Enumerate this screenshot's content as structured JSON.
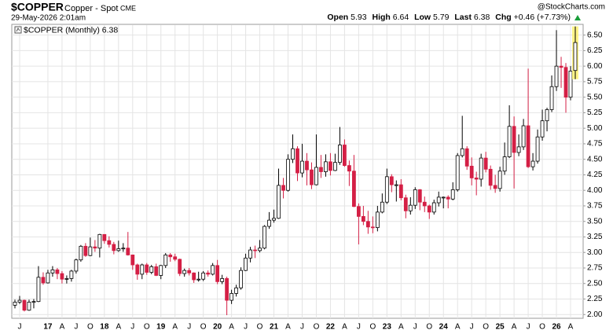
{
  "chart_data": {
    "type": "candlestick",
    "symbol": "$COPPER",
    "name": "Copper - Spot",
    "exchange": "CME",
    "date": "29-May-2026 2:01am",
    "source": "@StockCharts.com",
    "quote_labels": [
      "Open",
      "High",
      "Low",
      "Last",
      "Chg"
    ],
    "change": "+0.46 (+7.73%)",
    "legend": "$COPPER (Monthly)",
    "up_color": "#ffffff",
    "down_color": "#d41f45",
    "grid": true,
    "categories": [
      null,
      "J",
      null,
      null,
      null,
      null,
      null,
      "17",
      null,
      null,
      "A",
      null,
      null,
      "J",
      null,
      null,
      "O",
      null,
      null,
      "18",
      null,
      null,
      "A",
      null,
      null,
      "J",
      null,
      null,
      "O",
      null,
      null,
      "19",
      null,
      null,
      "A",
      null,
      null,
      "J",
      null,
      null,
      "O",
      null,
      null,
      "20",
      null,
      null,
      "A",
      null,
      null,
      "J",
      null,
      null,
      "O",
      null,
      null,
      "21",
      null,
      null,
      "A",
      null,
      null,
      "J",
      null,
      null,
      "O",
      null,
      null,
      "22",
      null,
      null,
      "A",
      null,
      null,
      "J",
      null,
      null,
      "O",
      null,
      null,
      "23",
      null,
      null,
      "A",
      null,
      null,
      "J",
      null,
      null,
      "O",
      null,
      null,
      "24",
      null,
      null,
      "A",
      null,
      null,
      "J",
      null,
      null,
      "O",
      null,
      null,
      "25",
      null,
      null,
      "A",
      null,
      null,
      "J",
      null,
      null,
      "O",
      null,
      null,
      "26",
      null,
      null,
      "A",
      null
    ],
    "open": [
      2.15,
      2.2,
      2.23,
      2.07,
      2.2,
      2.21,
      2.6,
      2.51,
      2.67,
      2.72,
      2.66,
      2.57,
      2.58,
      2.7,
      2.88,
      3.1,
      2.95,
      3.09,
      3.07,
      3.29,
      3.19,
      3.13,
      3.03,
      3.06,
      3.07,
      2.96,
      2.8,
      2.65,
      2.8,
      2.68,
      2.77,
      2.63,
      2.79,
      2.96,
      2.93,
      2.89,
      2.66,
      2.71,
      2.67,
      2.56,
      2.57,
      2.67,
      2.65,
      2.79,
      2.53,
      2.58,
      2.23,
      2.34,
      2.43,
      2.71,
      2.91,
      3.04,
      3.03,
      3.07,
      3.42,
      3.52,
      3.55,
      4.08,
      4.0,
      4.5,
      4.67,
      4.28,
      4.47,
      4.33,
      4.09,
      4.37,
      4.3,
      4.46,
      4.32,
      4.45,
      4.73,
      4.4,
      4.31,
      3.74,
      3.58,
      3.5,
      3.41,
      3.4,
      3.65,
      3.81,
      4.22,
      4.09,
      4.09,
      3.88,
      3.67,
      3.76,
      4.01,
      3.81,
      3.75,
      3.65,
      3.8,
      3.89,
      3.89,
      3.86,
      4.01,
      4.56,
      4.67,
      4.39,
      4.2,
      4.18,
      4.52,
      4.34,
      4.08,
      4.03,
      4.31,
      4.54,
      5.03,
      4.61,
      4.7,
      5.04,
      4.38,
      4.47,
      4.86,
      5.12,
      5.3,
      5.67,
      6.0,
      5.98,
      5.5,
      5.93
    ],
    "high": [
      2.24,
      2.3,
      2.24,
      2.24,
      2.25,
      2.78,
      2.68,
      2.72,
      2.78,
      2.75,
      2.7,
      2.63,
      2.72,
      2.9,
      3.12,
      3.15,
      3.24,
      3.2,
      3.3,
      3.29,
      3.26,
      3.17,
      3.19,
      3.15,
      3.33,
      2.96,
      2.82,
      2.82,
      2.83,
      2.8,
      2.82,
      2.8,
      2.99,
      2.99,
      2.98,
      2.9,
      2.74,
      2.75,
      2.68,
      2.69,
      2.7,
      2.71,
      2.83,
      2.88,
      2.64,
      2.61,
      2.4,
      2.48,
      2.76,
      2.98,
      3.09,
      3.11,
      3.2,
      3.44,
      3.65,
      3.69,
      4.35,
      4.2,
      4.58,
      4.9,
      4.71,
      4.75,
      4.6,
      4.45,
      4.9,
      4.57,
      4.58,
      4.6,
      4.59,
      5.02,
      4.82,
      4.48,
      4.57,
      3.79,
      3.75,
      3.67,
      3.58,
      3.75,
      3.95,
      4.35,
      4.26,
      4.16,
      4.18,
      3.93,
      3.89,
      4.05,
      4.02,
      3.9,
      3.77,
      3.85,
      3.98,
      3.9,
      3.92,
      4.13,
      4.6,
      5.2,
      4.71,
      4.53,
      4.3,
      4.59,
      4.62,
      4.4,
      4.25,
      4.38,
      4.77,
      5.37,
      5.19,
      4.9,
      5.15,
      5.96,
      4.6,
      4.98,
      5.3,
      5.33,
      5.85,
      6.58,
      6.15,
      6.05,
      6.0,
      6.64
    ],
    "low": [
      2.1,
      2.17,
      2.05,
      2.06,
      2.1,
      2.2,
      2.48,
      2.5,
      2.61,
      2.57,
      2.5,
      2.5,
      2.53,
      2.66,
      2.85,
      2.93,
      2.94,
      3.01,
      2.92,
      3.14,
      3.08,
      2.97,
      3.01,
      3.01,
      2.95,
      2.72,
      2.56,
      2.57,
      2.64,
      2.65,
      2.62,
      2.57,
      2.75,
      2.85,
      2.86,
      2.62,
      2.61,
      2.63,
      2.51,
      2.53,
      2.54,
      2.61,
      2.63,
      2.49,
      2.49,
      1.99,
      2.17,
      2.29,
      2.4,
      2.7,
      2.84,
      2.91,
      3.0,
      3.05,
      3.38,
      3.48,
      3.54,
      3.87,
      3.98,
      4.44,
      4.15,
      4.21,
      4.08,
      4.02,
      4.08,
      4.2,
      4.22,
      4.24,
      4.31,
      4.41,
      4.38,
      4.07,
      3.73,
      3.13,
      3.44,
      3.3,
      3.31,
      3.34,
      3.63,
      3.78,
      3.97,
      3.82,
      3.84,
      3.55,
      3.61,
      3.7,
      3.68,
      3.65,
      3.54,
      3.61,
      3.74,
      3.71,
      3.71,
      3.84,
      3.98,
      4.53,
      4.33,
      4.08,
      3.92,
      4.06,
      4.29,
      4.01,
      3.96,
      3.98,
      4.25,
      4.52,
      4.03,
      4.55,
      4.65,
      4.36,
      4.32,
      4.43,
      4.8,
      4.95,
      5.26,
      5.6,
      5.65,
      5.25,
      5.45,
      5.79
    ],
    "close": [
      2.2,
      2.23,
      2.07,
      2.2,
      2.21,
      2.6,
      2.51,
      2.67,
      2.72,
      2.66,
      2.57,
      2.58,
      2.7,
      2.88,
      3.1,
      2.95,
      3.09,
      3.07,
      3.29,
      3.19,
      3.13,
      3.03,
      3.06,
      3.07,
      2.96,
      2.8,
      2.65,
      2.8,
      2.68,
      2.77,
      2.63,
      2.79,
      2.96,
      2.93,
      2.89,
      2.66,
      2.71,
      2.67,
      2.56,
      2.57,
      2.67,
      2.65,
      2.79,
      2.53,
      2.58,
      2.23,
      2.34,
      2.43,
      2.71,
      2.91,
      3.04,
      3.03,
      3.07,
      3.42,
      3.52,
      3.55,
      4.08,
      4.0,
      4.5,
      4.67,
      4.28,
      4.47,
      4.33,
      4.09,
      4.37,
      4.3,
      4.46,
      4.32,
      4.45,
      4.73,
      4.4,
      4.31,
      3.74,
      3.58,
      3.5,
      3.41,
      3.4,
      3.65,
      3.81,
      4.22,
      4.09,
      4.09,
      3.88,
      3.67,
      3.76,
      4.01,
      3.81,
      3.75,
      3.65,
      3.8,
      3.89,
      3.89,
      3.86,
      4.01,
      4.56,
      4.67,
      4.39,
      4.2,
      4.18,
      4.52,
      4.34,
      4.08,
      4.03,
      4.31,
      4.54,
      5.03,
      4.61,
      4.7,
      5.04,
      4.38,
      4.47,
      4.86,
      5.12,
      5.3,
      5.67,
      6.0,
      5.98,
      5.5,
      5.92,
      6.38
    ],
    "ylim": [
      1.94,
      6.66
    ],
    "yticks": [
      {
        "value": 2,
        "label": "2.00"
      },
      {
        "value": 2.25,
        "label": "2.25"
      },
      {
        "value": 2.5,
        "label": "2.50"
      },
      {
        "value": 2.75,
        "label": "2.75"
      },
      {
        "value": 3,
        "label": "3.00"
      },
      {
        "value": 3.25,
        "label": "3.25"
      },
      {
        "value": 3.5,
        "label": "3.50"
      },
      {
        "value": 3.75,
        "label": "3.75"
      },
      {
        "value": 4,
        "label": "4.00"
      },
      {
        "value": 4.25,
        "label": "4.25"
      },
      {
        "value": 4.5,
        "label": "4.50"
      },
      {
        "value": 4.75,
        "label": "4.75"
      },
      {
        "value": 5,
        "label": "5.00"
      },
      {
        "value": 5.25,
        "label": "5.25"
      },
      {
        "value": 5.5,
        "label": "5.50"
      },
      {
        "value": 5.75,
        "label": "5.75"
      },
      {
        "value": 6,
        "label": "6.00"
      },
      {
        "value": 6.25,
        "label": "6.25"
      },
      {
        "value": 6.5,
        "label": "6.50"
      }
    ]
  }
}
